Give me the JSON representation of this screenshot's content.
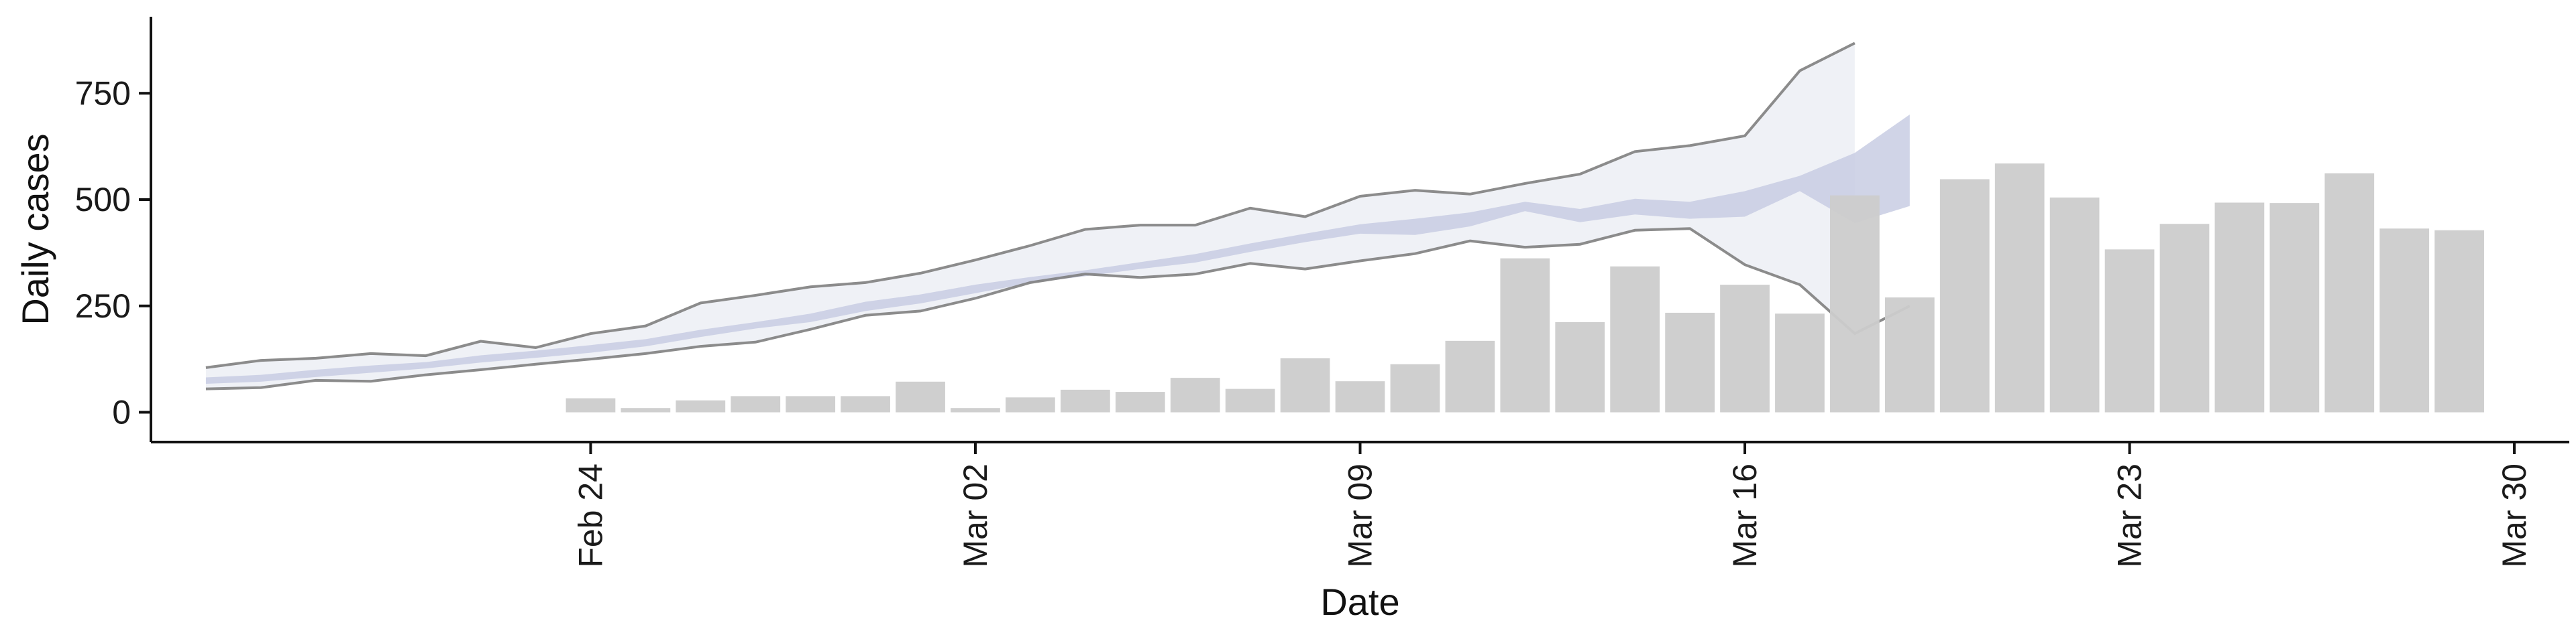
{
  "chart_data": {
    "type": "bar",
    "xlabel": "Date",
    "ylabel": "Daily cases",
    "ylim": [
      -70,
      930
    ],
    "xlim": [
      "2020-02-16",
      "2020-03-31"
    ],
    "x_ticks": [
      {
        "date": "2020-02-24",
        "label": "Feb 24"
      },
      {
        "date": "2020-03-02",
        "label": "Mar 02"
      },
      {
        "date": "2020-03-09",
        "label": "Mar 09"
      },
      {
        "date": "2020-03-16",
        "label": "Mar 16"
      },
      {
        "date": "2020-03-23",
        "label": "Mar 23"
      },
      {
        "date": "2020-03-30",
        "label": "Mar 30"
      }
    ],
    "y_ticks": [
      0,
      250,
      500,
      750
    ],
    "grid": false,
    "colors": {
      "bars": "#cccccc",
      "ribbon_outer": "#eceef5",
      "ribbon_inner": "#c8cde3",
      "ribbon_lines": "#7f7f7f"
    },
    "observed_daily_cases": {
      "dates": [
        "2020-02-24",
        "2020-02-25",
        "2020-02-26",
        "2020-02-27",
        "2020-02-28",
        "2020-02-29",
        "2020-03-01",
        "2020-03-02",
        "2020-03-03",
        "2020-03-04",
        "2020-03-05",
        "2020-03-06",
        "2020-03-07",
        "2020-03-08",
        "2020-03-09",
        "2020-03-10",
        "2020-03-11",
        "2020-03-12",
        "2020-03-13",
        "2020-03-14",
        "2020-03-15",
        "2020-03-16",
        "2020-03-17",
        "2020-03-18",
        "2020-03-19",
        "2020-03-20",
        "2020-03-21",
        "2020-03-22",
        "2020-03-23",
        "2020-03-24",
        "2020-03-25",
        "2020-03-26",
        "2020-03-27",
        "2020-03-28",
        "2020-03-29"
      ],
      "values": [
        33,
        10,
        28,
        38,
        38,
        38,
        72,
        10,
        35,
        53,
        48,
        81,
        55,
        127,
        73,
        113,
        168,
        362,
        212,
        343,
        234,
        300,
        232,
        510,
        270,
        548,
        585,
        505,
        383,
        443,
        493,
        492,
        562,
        432,
        428
      ]
    },
    "estimate_ribbon": {
      "dates": [
        "2020-02-17",
        "2020-02-18",
        "2020-02-19",
        "2020-02-20",
        "2020-02-21",
        "2020-02-22",
        "2020-02-23",
        "2020-02-24",
        "2020-02-25",
        "2020-02-26",
        "2020-02-27",
        "2020-02-28",
        "2020-02-29",
        "2020-03-01",
        "2020-03-02",
        "2020-03-03",
        "2020-03-04",
        "2020-03-05",
        "2020-03-06",
        "2020-03-07",
        "2020-03-08",
        "2020-03-09",
        "2020-03-10",
        "2020-03-11",
        "2020-03-12",
        "2020-03-13",
        "2020-03-14",
        "2020-03-15",
        "2020-03-16",
        "2020-03-17",
        "2020-03-18",
        "2020-03-19",
        "2020-03-20"
      ],
      "outer_lower": [
        55,
        58,
        75,
        73,
        88,
        100,
        113,
        125,
        138,
        155,
        165,
        195,
        228,
        238,
        268,
        305,
        325,
        317,
        325,
        350,
        337,
        356,
        373,
        403,
        388,
        395,
        428,
        432,
        347,
        300,
        185,
        250,
        null
      ],
      "outer_upper": [
        105,
        122,
        127,
        138,
        133,
        167,
        152,
        185,
        203,
        257,
        275,
        295,
        305,
        327,
        358,
        392,
        430,
        440,
        440,
        480,
        460,
        508,
        522,
        513,
        538,
        560,
        613,
        627,
        650,
        803,
        868,
        null,
        null
      ],
      "inner_lower": [
        67,
        72,
        83,
        93,
        103,
        117,
        128,
        140,
        155,
        177,
        197,
        212,
        238,
        256,
        280,
        304,
        320,
        337,
        352,
        377,
        400,
        420,
        417,
        437,
        473,
        447,
        465,
        455,
        460,
        520,
        445,
        485,
        null
      ],
      "inner_upper": [
        82,
        88,
        100,
        110,
        118,
        134,
        145,
        158,
        172,
        194,
        212,
        232,
        260,
        277,
        300,
        318,
        334,
        353,
        372,
        397,
        420,
        442,
        455,
        470,
        495,
        478,
        502,
        495,
        520,
        556,
        610,
        700,
        null
      ]
    }
  }
}
